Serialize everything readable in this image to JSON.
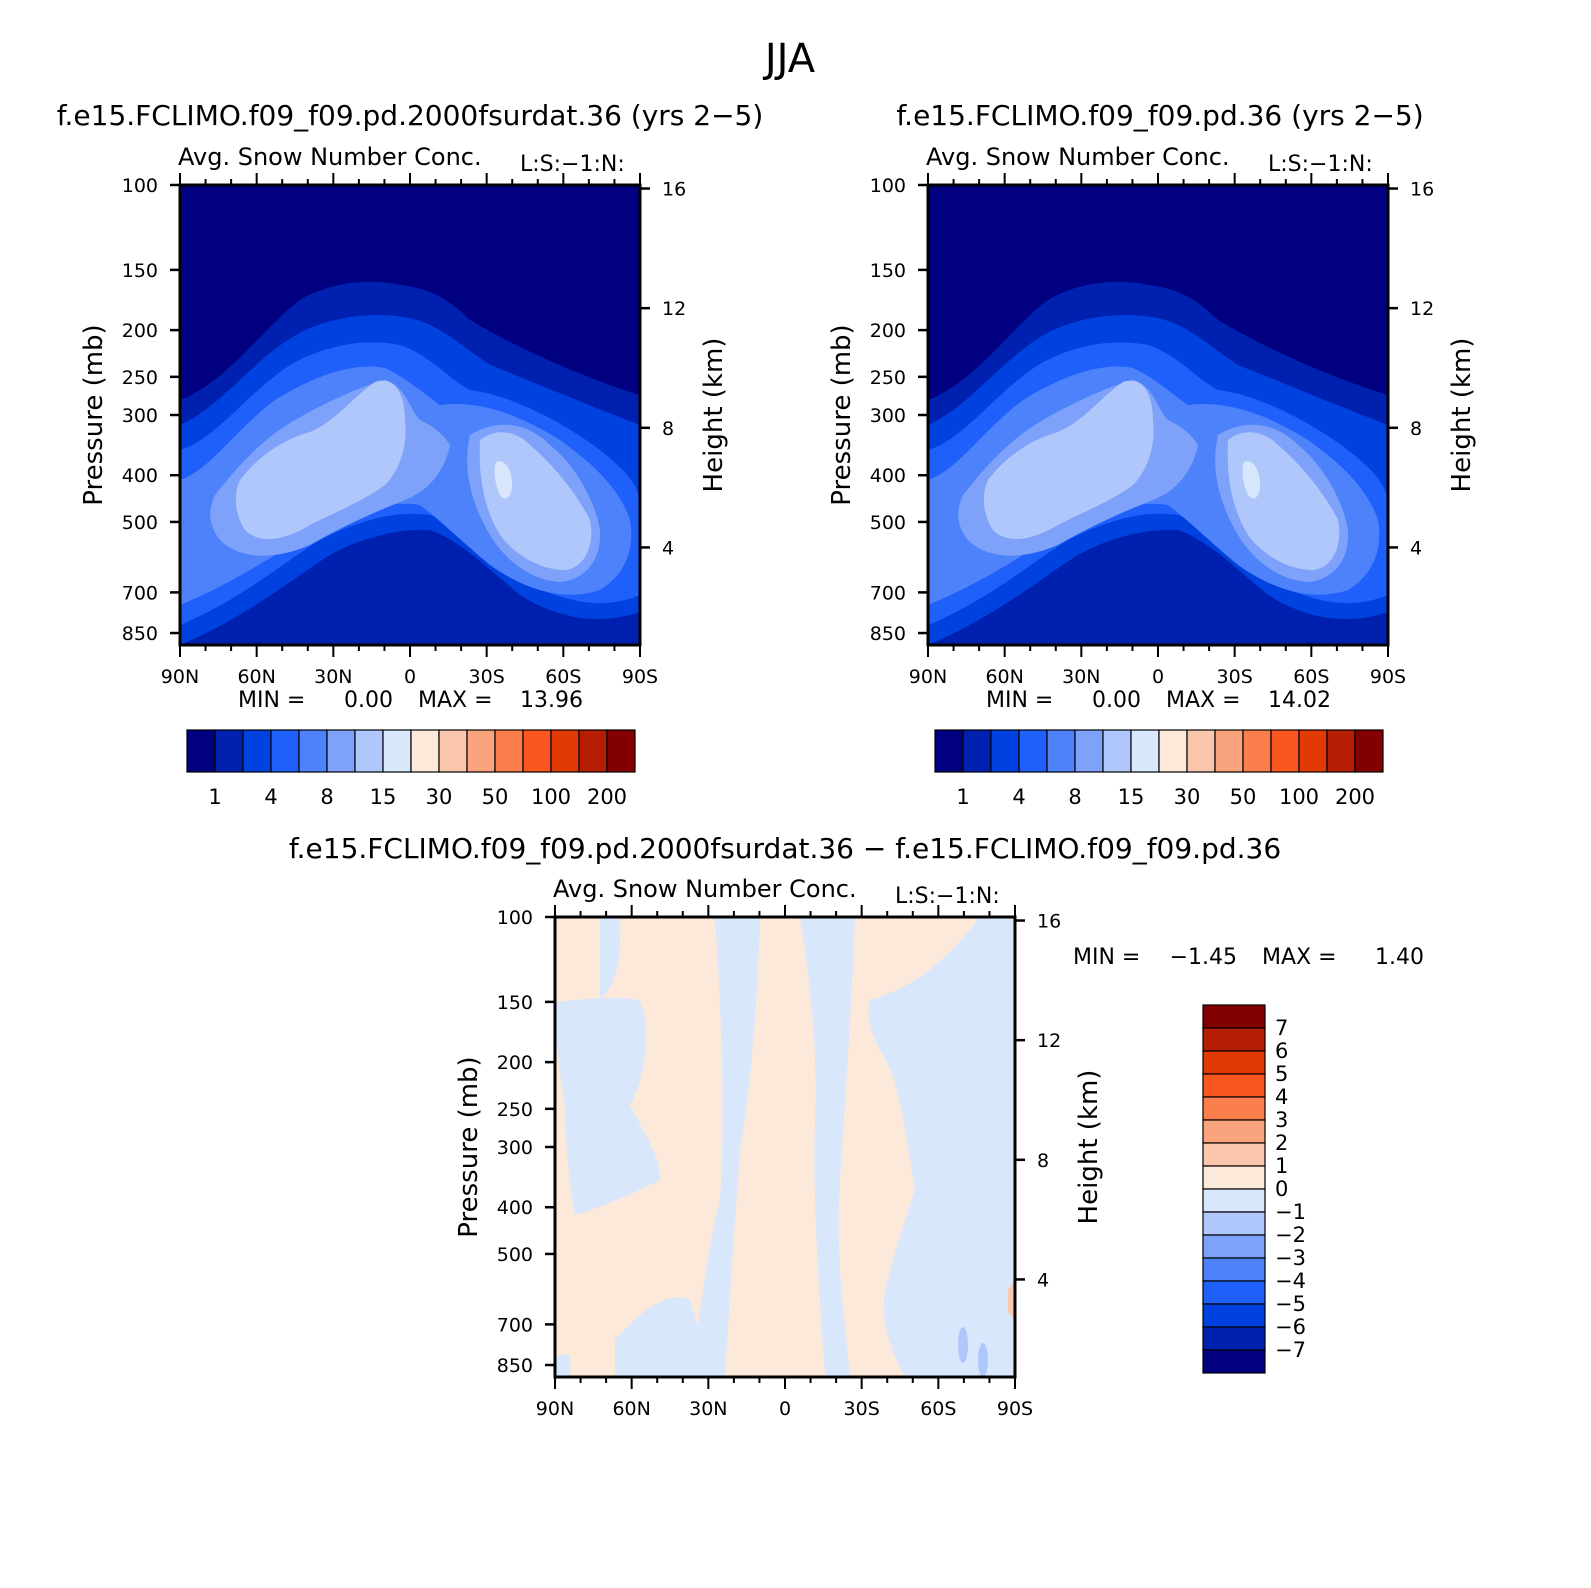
{
  "figure": {
    "title": "JJA"
  },
  "palettes": {
    "abs": [
      "#000081",
      "#0021b0",
      "#0042e0",
      "#1f5ffa",
      "#4d82fa",
      "#7ea2fa",
      "#b0c7fb",
      "#d8e7fb",
      "#fde9d9",
      "#fbc7ac",
      "#faa47e",
      "#fa7f4c",
      "#fa561f",
      "#e13a05",
      "#b51e03",
      "#820002"
    ],
    "diff": [
      "#000081",
      "#0021b0",
      "#0042e0",
      "#1f5ffa",
      "#4d82fa",
      "#7ea2fa",
      "#b0c7fb",
      "#d8e7fb",
      "#fde9d9",
      "#fbc7ac",
      "#faa47e",
      "#fa7f4c",
      "#fa561f",
      "#e13a05",
      "#b51e03",
      "#820002"
    ]
  },
  "chart_data": [
    {
      "type": "heatmap",
      "panel": "case1",
      "title": "f.e15.FCLIMO.f09_f09.pd.2000fsurdat.36 (yrs 2−5)",
      "subtitle": "Avg. Snow Number Conc.",
      "annotation": "L:S:−1:N:",
      "xlabel": "",
      "ylabel": "Pressure (mb)",
      "y2label": "Height (km)",
      "x_ticks": [
        "90N",
        "60N",
        "30N",
        "0",
        "30S",
        "60S",
        "90S"
      ],
      "x_range": [
        90,
        -90
      ],
      "y_ticks": [
        100,
        150,
        200,
        250,
        300,
        400,
        500,
        700,
        850
      ],
      "y_range": [
        100,
        900
      ],
      "y2_ticks": [
        16,
        12,
        8,
        4
      ],
      "stats": {
        "min_label": "MIN =",
        "min": "0.00",
        "max_label": "MAX =",
        "max": "13.96"
      },
      "max_value": 13.96,
      "colorbar": {
        "levels": [
          0.5,
          1,
          2,
          4,
          6,
          8,
          10,
          15,
          20,
          30,
          40,
          50,
          75,
          100,
          150,
          200
        ],
        "labels": [
          "1",
          "4",
          "8",
          "15",
          "30",
          "50",
          "100",
          "200"
        ]
      }
    },
    {
      "type": "heatmap",
      "panel": "case2",
      "title": "f.e15.FCLIMO.f09_f09.pd.36 (yrs 2−5)",
      "subtitle": "Avg. Snow Number Conc.",
      "annotation": "L:S:−1:N:",
      "xlabel": "",
      "ylabel": "Pressure (mb)",
      "y2label": "Height (km)",
      "x_ticks": [
        "90N",
        "60N",
        "30N",
        "0",
        "30S",
        "60S",
        "90S"
      ],
      "x_range": [
        90,
        -90
      ],
      "y_ticks": [
        100,
        150,
        200,
        250,
        300,
        400,
        500,
        700,
        850
      ],
      "y_range": [
        100,
        900
      ],
      "y2_ticks": [
        16,
        12,
        8,
        4
      ],
      "stats": {
        "min_label": "MIN =",
        "min": "0.00",
        "max_label": "MAX =",
        "max": "14.02"
      },
      "max_value": 14.02,
      "colorbar": {
        "levels": [
          0.5,
          1,
          2,
          4,
          6,
          8,
          10,
          15,
          20,
          30,
          40,
          50,
          75,
          100,
          150,
          200
        ],
        "labels": [
          "1",
          "4",
          "8",
          "15",
          "30",
          "50",
          "100",
          "200"
        ]
      }
    },
    {
      "type": "heatmap",
      "panel": "difference",
      "title": "f.e15.FCLIMO.f09_f09.pd.2000fsurdat.36 − f.e15.FCLIMO.f09_f09.pd.36",
      "subtitle": "Avg. Snow Number Conc.",
      "annotation": "L:S:−1:N:",
      "xlabel": "",
      "ylabel": "Pressure (mb)",
      "y2label": "Height (km)",
      "x_ticks": [
        "90N",
        "60N",
        "30N",
        "0",
        "30S",
        "60S",
        "90S"
      ],
      "x_range": [
        90,
        -90
      ],
      "y_ticks": [
        100,
        150,
        200,
        250,
        300,
        400,
        500,
        700,
        850
      ],
      "y_range": [
        100,
        900
      ],
      "y2_ticks": [
        16,
        12,
        8,
        4
      ],
      "stats": {
        "min_label": "MIN =",
        "min": "−1.45",
        "max_label": "MAX =",
        "max": "1.40"
      },
      "colorbar": {
        "labels": [
          "7",
          "6",
          "5",
          "4",
          "3",
          "2",
          "1",
          "0",
          "−1",
          "−2",
          "−3",
          "−4",
          "−5",
          "−6",
          "−7"
        ]
      }
    }
  ]
}
